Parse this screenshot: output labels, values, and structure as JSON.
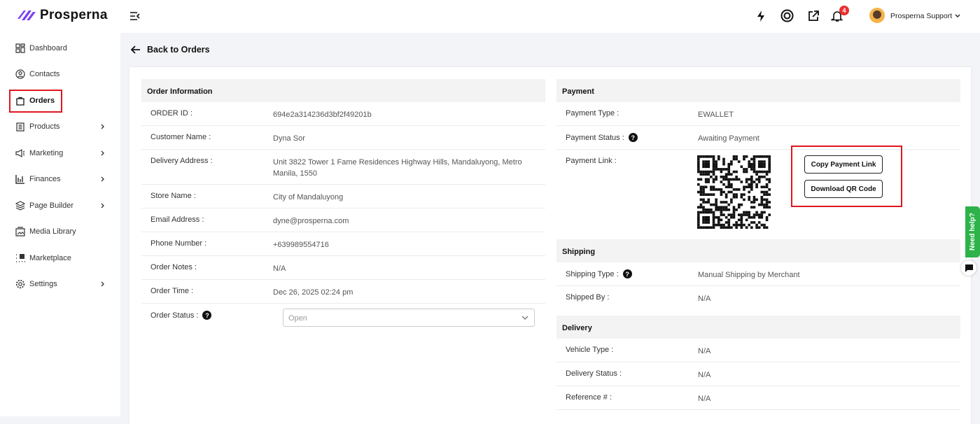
{
  "brand": {
    "name": "Prosperna",
    "color": "#7b3ff2"
  },
  "sidebar": {
    "items": [
      {
        "label": "Dashboard",
        "icon": "grid-icon"
      },
      {
        "label": "Contacts",
        "icon": "user-circle-icon"
      },
      {
        "label": "Orders",
        "icon": "shopping-bag-icon",
        "active": true
      },
      {
        "label": "Products",
        "icon": "clipboard-icon",
        "expandable": true
      },
      {
        "label": "Marketing",
        "icon": "megaphone-icon",
        "expandable": true
      },
      {
        "label": "Finances",
        "icon": "bar-chart-icon",
        "expandable": true
      },
      {
        "label": "Page Builder",
        "icon": "layers-icon",
        "expandable": true
      },
      {
        "label": "Media Library",
        "icon": "image-folder-icon"
      },
      {
        "label": "Marketplace",
        "icon": "marketplace-icon"
      },
      {
        "label": "Settings",
        "icon": "gear-icon",
        "expandable": true
      }
    ]
  },
  "header": {
    "notifications": "4",
    "user": "Prosperna Support"
  },
  "back_label": "Back to Orders",
  "order": {
    "title": "Order Information",
    "rows": [
      {
        "label": "ORDER ID :",
        "value": "694e2a314236d3bf2f49201b"
      },
      {
        "label": "Customer Name :",
        "value": "Dyna Sor"
      },
      {
        "label": "Delivery Address :",
        "value": "Unit 3822 Tower 1 Fame Residences Highway Hills, Mandaluyong, Metro Manila, 1550"
      },
      {
        "label": "Store Name :",
        "value": "City of Mandaluyong"
      },
      {
        "label": "Email Address :",
        "value": "dyne@prosperna.com"
      },
      {
        "label": "Phone Number :",
        "value": "+639989554716"
      },
      {
        "label": "Order Notes :",
        "value": "N/A"
      },
      {
        "label": "Order Time :",
        "value": "Dec 26, 2025 02:24 pm"
      }
    ],
    "status_label": "Order Status :",
    "status_value": "Open"
  },
  "payment": {
    "title": "Payment",
    "type_label": "Payment Type :",
    "type_value": "EWALLET",
    "status_label": "Payment Status :",
    "status_value": "Awaiting Payment",
    "link_label": "Payment Link :",
    "copy_button": "Copy Payment Link",
    "download_button": "Download QR Code"
  },
  "shipping": {
    "title": "Shipping",
    "type_label": "Shipping Type :",
    "type_value": "Manual Shipping by Merchant",
    "by_label": "Shipped By :",
    "by_value": "N/A"
  },
  "delivery": {
    "title": "Delivery",
    "rows": [
      {
        "label": "Vehicle Type :",
        "value": "N/A"
      },
      {
        "label": "Delivery Status :",
        "value": "N/A"
      },
      {
        "label": "Reference # :",
        "value": "N/A"
      }
    ]
  },
  "help": {
    "label": "Need help?"
  },
  "highlight_color": "#e0161e"
}
